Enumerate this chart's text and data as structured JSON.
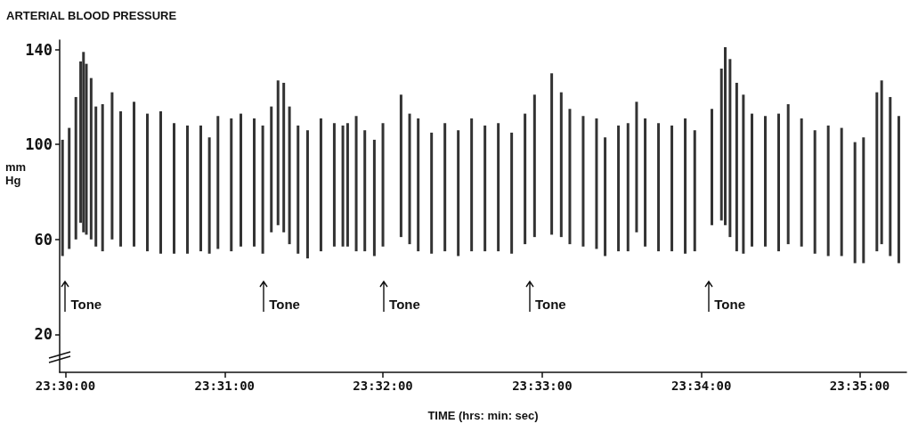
{
  "chart_data": {
    "type": "bar",
    "title": "ARTERIAL BLOOD PRESSURE",
    "xlabel": "TIME (hrs: min: sec)",
    "ylabel": "mm Hg",
    "x": [
      23.4997,
      23.5004,
      23.5011,
      23.5016,
      23.5019,
      23.5022,
      23.5027,
      23.5032,
      23.5039,
      23.5049,
      23.5058,
      23.5072,
      23.5086,
      23.51,
      23.5114,
      23.5128,
      23.5142,
      23.5151,
      23.516,
      23.5174,
      23.5184,
      23.5198,
      23.5207,
      23.5216,
      23.5223,
      23.5229,
      23.5235,
      23.5244,
      23.5254,
      23.5268,
      23.5282,
      23.5291,
      23.5296,
      23.5305,
      23.5314,
      23.5324,
      23.5333,
      23.5352,
      23.5361,
      23.537,
      23.5384,
      23.5398,
      23.5412,
      23.5426,
      23.544,
      23.5454,
      23.5468,
      23.5482,
      23.5492,
      23.551,
      23.552,
      23.5529,
      23.5543,
      23.5557,
      23.5566,
      23.558,
      23.559,
      23.5599,
      23.5608,
      23.5622,
      23.5636,
      23.565,
      23.566,
      23.5678,
      23.5688,
      23.5692,
      23.5697,
      23.5704,
      23.5711,
      23.572,
      23.5734,
      23.5748,
      23.5758,
      23.5772,
      23.5786,
      23.58,
      23.5814,
      23.5828,
      23.5837,
      23.5851,
      23.5856,
      23.5865,
      23.5874
    ],
    "base": [
      53,
      56,
      60,
      67,
      63,
      62,
      60,
      57,
      55,
      60,
      57,
      57,
      55,
      54,
      54,
      54,
      55,
      54,
      56,
      55,
      57,
      57,
      54,
      63,
      66,
      63,
      58,
      54,
      52,
      55,
      57,
      57,
      57,
      55,
      55,
      53,
      57,
      61,
      58,
      55,
      54,
      55,
      53,
      55,
      55,
      55,
      54,
      58,
      61,
      62,
      61,
      58,
      57,
      56,
      53,
      55,
      55,
      63,
      57,
      55,
      55,
      54,
      55,
      66,
      68,
      66,
      61,
      55,
      54,
      57,
      57,
      55,
      58,
      57,
      54,
      53,
      53,
      50,
      50,
      55,
      58,
      53,
      50
    ],
    "values": [
      49,
      51,
      60,
      68,
      76,
      72,
      68,
      59,
      62,
      62,
      57,
      61,
      58,
      60,
      55,
      54,
      53,
      49,
      56,
      56,
      56,
      54,
      54,
      53,
      61,
      63,
      58,
      54,
      54,
      56,
      52,
      51,
      52,
      57,
      51,
      49,
      52,
      60,
      55,
      56,
      51,
      54,
      53,
      56,
      53,
      54,
      51,
      55,
      60,
      68,
      61,
      57,
      55,
      55,
      50,
      53,
      54,
      55,
      54,
      54,
      53,
      57,
      51,
      49,
      64,
      75,
      75,
      71,
      67,
      56,
      55,
      58,
      59,
      54,
      52,
      55,
      54,
      51,
      53,
      67,
      69,
      67,
      62
    ],
    "color": "#333333",
    "xlim": [
      23.4994,
      23.5882
    ],
    "xticks": [
      {
        "value": 23.5,
        "label": "23:30:00"
      },
      {
        "value": 23.5167,
        "label": "23:31:00"
      },
      {
        "value": 23.5333,
        "label": "23:32:00"
      },
      {
        "value": 23.55,
        "label": "23:33:00"
      },
      {
        "value": 23.5667,
        "label": "23:34:00"
      },
      {
        "value": 23.5833,
        "label": "23:35:00"
      }
    ],
    "ylim": [
      4,
      144
    ],
    "yticks": [
      20,
      60,
      100,
      140
    ],
    "grid": false,
    "ref_lines": [
      {
        "axis": "x",
        "value": 23.5,
        "label": "Tone"
      },
      {
        "axis": "x",
        "value": 23.5208,
        "label": "Tone"
      },
      {
        "axis": "x",
        "value": 23.5334,
        "label": "Tone"
      },
      {
        "axis": "x",
        "value": 23.5487,
        "label": "Tone"
      },
      {
        "axis": "x",
        "value": 23.5675,
        "label": "Tone"
      }
    ]
  }
}
